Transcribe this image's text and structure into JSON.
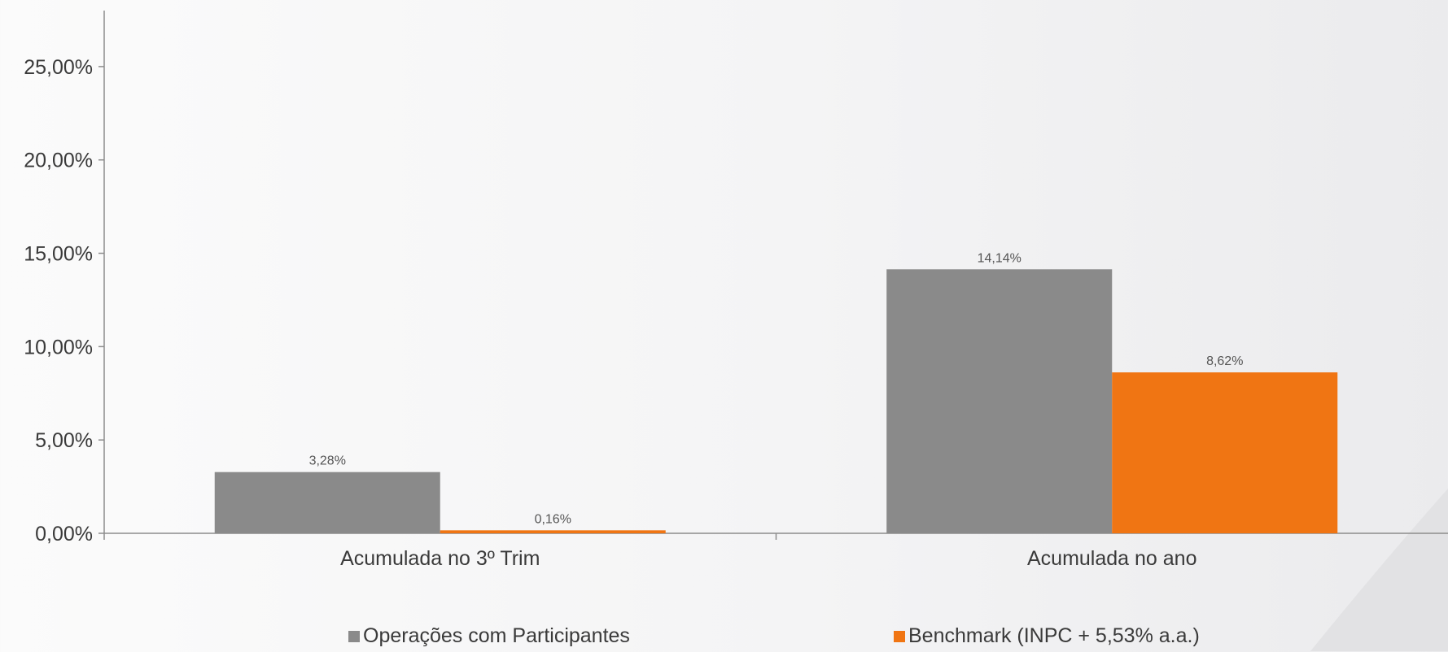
{
  "chart_data": {
    "type": "bar",
    "categories": [
      "Acumulada no 3º Trim",
      "Acumulada no ano"
    ],
    "series": [
      {
        "name": "Operações com Participantes",
        "values": [
          3.28,
          14.14
        ],
        "value_labels": [
          "3,28%",
          "14,14%"
        ],
        "color": "#8a8a8a"
      },
      {
        "name": "Benchmark (INPC + 5,53% a.a.)",
        "values": [
          0.16,
          8.62
        ],
        "value_labels": [
          "0,16%",
          "8,62%"
        ],
        "color": "#f07513"
      }
    ],
    "ylim": [
      0,
      28
    ],
    "yticks": [
      0,
      5,
      10,
      15,
      20,
      25
    ],
    "ytick_labels": [
      "0,00%",
      "5,00%",
      "10,00%",
      "15,00%",
      "20,00%",
      "25,00%"
    ],
    "grid": false,
    "legend_position": "bottom"
  }
}
